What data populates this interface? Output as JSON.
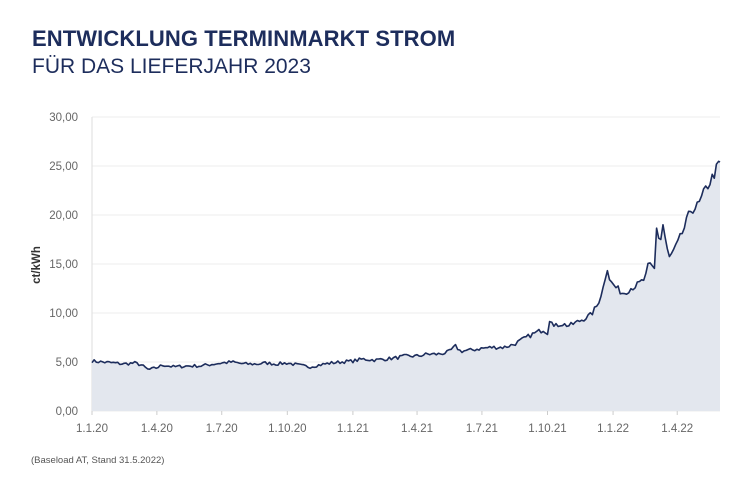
{
  "header": {
    "title": "ENTWICKLUNG TERMINMARKT STROM",
    "subtitle": "FÜR DAS LIEFERJAHR 2023"
  },
  "footnote": "(Baseload AT, Stand 31.5.2022)",
  "colors": {
    "line": "#1d2d5c",
    "area": "#e3e7ee",
    "grid": "#ededed",
    "title": "#1d2d5c"
  },
  "chart_data": {
    "type": "area",
    "title": "ENTWICKLUNG TERMINMARKT STROM",
    "subtitle": "FÜR DAS LIEFERJAHR 2023",
    "xlabel": "",
    "ylabel": "ct/kWh",
    "ylim": [
      0,
      30
    ],
    "yticks": [
      "0,00",
      "5,00",
      "10,00",
      "15,00",
      "20,00",
      "25,00",
      "30,00"
    ],
    "xticks": [
      "1.1.20",
      "1.4.20",
      "1.7.20",
      "1.10.20",
      "1.1.21",
      "1.4.21",
      "1.7.21",
      "1.10.21",
      "1.1.22",
      "1.4.22"
    ],
    "xrange": [
      "2020-01-01",
      "2022-05-31"
    ],
    "grid": "horizontal",
    "series": [
      {
        "values": [
          [
            "2020-01-01",
            5.1
          ],
          [
            "2020-01-15",
            5.0
          ],
          [
            "2020-02-01",
            4.9
          ],
          [
            "2020-02-15",
            4.8
          ],
          [
            "2020-03-01",
            4.9
          ],
          [
            "2020-03-10",
            4.7
          ],
          [
            "2020-03-20",
            4.2
          ],
          [
            "2020-03-31",
            4.4
          ],
          [
            "2020-04-10",
            4.7
          ],
          [
            "2020-04-25",
            4.5
          ],
          [
            "2020-05-15",
            4.6
          ],
          [
            "2020-06-01",
            4.6
          ],
          [
            "2020-06-20",
            4.8
          ],
          [
            "2020-07-01",
            4.9
          ],
          [
            "2020-07-15",
            5.0
          ],
          [
            "2020-08-01",
            4.8
          ],
          [
            "2020-08-20",
            4.8
          ],
          [
            "2020-09-01",
            4.9
          ],
          [
            "2020-09-15",
            4.8
          ],
          [
            "2020-10-01",
            4.9
          ],
          [
            "2020-10-15",
            4.7
          ],
          [
            "2020-11-01",
            4.5
          ],
          [
            "2020-11-15",
            4.7
          ],
          [
            "2020-12-01",
            4.9
          ],
          [
            "2020-12-15",
            5.0
          ],
          [
            "2021-01-01",
            5.1
          ],
          [
            "2021-01-15",
            5.3
          ],
          [
            "2021-02-01",
            5.2
          ],
          [
            "2021-02-15",
            5.3
          ],
          [
            "2021-03-01",
            5.4
          ],
          [
            "2021-03-15",
            5.6
          ],
          [
            "2021-04-01",
            5.6
          ],
          [
            "2021-04-15",
            5.8
          ],
          [
            "2021-05-01",
            5.8
          ],
          [
            "2021-05-15",
            6.0
          ],
          [
            "2021-05-25",
            6.6
          ],
          [
            "2021-06-01",
            6.1
          ],
          [
            "2021-06-15",
            6.2
          ],
          [
            "2021-07-01",
            6.4
          ],
          [
            "2021-07-15",
            6.5
          ],
          [
            "2021-08-01",
            6.5
          ],
          [
            "2021-08-15",
            6.8
          ],
          [
            "2021-09-01",
            7.5
          ],
          [
            "2021-09-15",
            8.0
          ],
          [
            "2021-09-25",
            8.3
          ],
          [
            "2021-10-01",
            8.0
          ],
          [
            "2021-10-05",
            9.8
          ],
          [
            "2021-10-10",
            8.6
          ],
          [
            "2021-10-20",
            8.9
          ],
          [
            "2021-11-01",
            8.7
          ],
          [
            "2021-11-15",
            9.2
          ],
          [
            "2021-12-01",
            9.8
          ],
          [
            "2021-12-10",
            10.8
          ],
          [
            "2021-12-20",
            13.0
          ],
          [
            "2021-12-23",
            15.0
          ],
          [
            "2021-12-28",
            13.2
          ],
          [
            "2022-01-05",
            12.6
          ],
          [
            "2022-01-15",
            12.0
          ],
          [
            "2022-01-25",
            12.5
          ],
          [
            "2022-02-05",
            12.9
          ],
          [
            "2022-02-15",
            13.5
          ],
          [
            "2022-02-20",
            15.0
          ],
          [
            "2022-02-28",
            14.5
          ],
          [
            "2022-03-03",
            18.8
          ],
          [
            "2022-03-08",
            17.0
          ],
          [
            "2022-03-12",
            19.0
          ],
          [
            "2022-03-20",
            15.5
          ],
          [
            "2022-03-31",
            16.8
          ],
          [
            "2022-04-10",
            18.5
          ],
          [
            "2022-04-20",
            20.5
          ],
          [
            "2022-05-01",
            21.0
          ],
          [
            "2022-05-10",
            22.5
          ],
          [
            "2022-05-20",
            23.8
          ],
          [
            "2022-05-31",
            25.4
          ]
        ]
      }
    ]
  }
}
